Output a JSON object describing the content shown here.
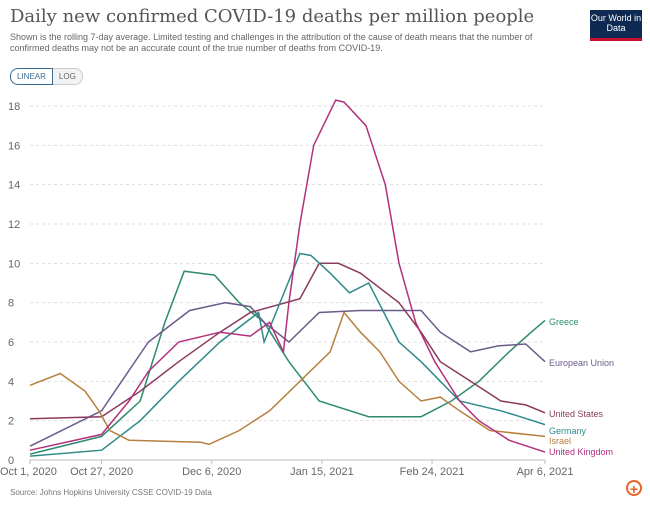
{
  "header": {
    "title": "Daily new confirmed COVID-19 deaths per million people",
    "subtitle": "Shown is the rolling 7-day average. Limited testing and challenges in the attribution of the cause of death means that the number of confirmed deaths may not be an accurate count of the true number of deaths from COVID-19.",
    "logo": "Our World in Data"
  },
  "controls": {
    "linear": "LINEAR",
    "log": "LOG"
  },
  "footer": {
    "source": "Source: Johns Hopkins University CSSE COVID-19 Data"
  },
  "chart_data": {
    "type": "line",
    "title": "Daily new confirmed COVID-19 deaths per million people",
    "x_unit": "days since Oct 1, 2020",
    "xlim": [
      0,
      187
    ],
    "ylim": [
      0,
      18
    ],
    "yticks": [
      0,
      2,
      4,
      6,
      8,
      10,
      12,
      14,
      16,
      18
    ],
    "xticks": [
      {
        "day": 0,
        "label": "Oct 1, 2020"
      },
      {
        "day": 26,
        "label": "Oct 27, 2020"
      },
      {
        "day": 66,
        "label": "Dec 6, 2020"
      },
      {
        "day": 106,
        "label": "Jan 15, 2021"
      },
      {
        "day": 146,
        "label": "Feb 24, 2021"
      },
      {
        "day": 187,
        "label": "Apr 6, 2021"
      }
    ],
    "grid": true,
    "legend": "right-end labels",
    "series": [
      {
        "name": "Greece",
        "color": "#2e8b6e",
        "points": [
          [
            0,
            0.3
          ],
          [
            26,
            1.2
          ],
          [
            40,
            3
          ],
          [
            49,
            7
          ],
          [
            56,
            9.6
          ],
          [
            67,
            9.4
          ],
          [
            76,
            8
          ],
          [
            85,
            7
          ],
          [
            94,
            5
          ],
          [
            105,
            3
          ],
          [
            123,
            2.2
          ],
          [
            142,
            2.2
          ],
          [
            153,
            3
          ],
          [
            163,
            4
          ],
          [
            174,
            5.5
          ],
          [
            182,
            6.5
          ],
          [
            187,
            7.1
          ]
        ]
      },
      {
        "name": "European Union",
        "color": "#6b5b8a",
        "points": [
          [
            0,
            0.7
          ],
          [
            26,
            2.5
          ],
          [
            43,
            6
          ],
          [
            58,
            7.6
          ],
          [
            71,
            8
          ],
          [
            80,
            7.8
          ],
          [
            85,
            7
          ],
          [
            94,
            6
          ],
          [
            105,
            7.5
          ],
          [
            120,
            7.6
          ],
          [
            142,
            7.6
          ],
          [
            149,
            6.5
          ],
          [
            160,
            5.5
          ],
          [
            170,
            5.8
          ],
          [
            180,
            5.9
          ],
          [
            187,
            5.0
          ]
        ]
      },
      {
        "name": "United States",
        "color": "#8a3a5e",
        "points": [
          [
            0,
            2.1
          ],
          [
            26,
            2.2
          ],
          [
            40,
            3.5
          ],
          [
            54,
            5
          ],
          [
            69,
            6.5
          ],
          [
            80,
            7.5
          ],
          [
            98,
            8.2
          ],
          [
            105,
            10
          ],
          [
            112,
            10
          ],
          [
            120,
            9.5
          ],
          [
            134,
            8
          ],
          [
            142,
            6.5
          ],
          [
            149,
            5
          ],
          [
            160,
            4
          ],
          [
            171,
            3
          ],
          [
            180,
            2.8
          ],
          [
            187,
            2.4
          ]
        ]
      },
      {
        "name": "Germany",
        "color": "#2f8a8a",
        "points": [
          [
            0,
            0.2
          ],
          [
            26,
            0.5
          ],
          [
            40,
            2
          ],
          [
            54,
            4
          ],
          [
            69,
            6
          ],
          [
            83,
            7.5
          ],
          [
            85,
            6
          ],
          [
            98,
            10.5
          ],
          [
            102,
            10.4
          ],
          [
            109,
            9.5
          ],
          [
            116,
            8.5
          ],
          [
            123,
            9
          ],
          [
            134,
            6
          ],
          [
            142,
            5
          ],
          [
            149,
            4
          ],
          [
            156,
            3
          ],
          [
            171,
            2.5
          ],
          [
            178,
            2.2
          ],
          [
            187,
            1.8
          ]
        ]
      },
      {
        "name": "Israel",
        "color": "#b8803e",
        "points": [
          [
            0,
            3.8
          ],
          [
            11,
            4.4
          ],
          [
            20,
            3.5
          ],
          [
            25,
            2.5
          ],
          [
            29,
            1.5
          ],
          [
            36,
            1
          ],
          [
            62,
            0.9
          ],
          [
            65,
            0.8
          ],
          [
            76,
            1.5
          ],
          [
            87,
            2.5
          ],
          [
            98,
            4
          ],
          [
            109,
            5.5
          ],
          [
            114,
            7.5
          ],
          [
            120,
            6.5
          ],
          [
            127,
            5.5
          ],
          [
            134,
            4
          ],
          [
            142,
            3
          ],
          [
            149,
            3.2
          ],
          [
            156,
            2.5
          ],
          [
            167,
            1.5
          ],
          [
            187,
            1.2
          ]
        ]
      },
      {
        "name": "United Kingdom",
        "color": "#b2307e",
        "points": [
          [
            0,
            0.5
          ],
          [
            26,
            1.3
          ],
          [
            36,
            3
          ],
          [
            43,
            4.5
          ],
          [
            54,
            6
          ],
          [
            69,
            6.5
          ],
          [
            80,
            6.3
          ],
          [
            87,
            7
          ],
          [
            92,
            5.5
          ],
          [
            94,
            8
          ],
          [
            98,
            12
          ],
          [
            103,
            16
          ],
          [
            111,
            18.3
          ],
          [
            114,
            18.2
          ],
          [
            122,
            17
          ],
          [
            129,
            14
          ],
          [
            134,
            10
          ],
          [
            140,
            7
          ],
          [
            147,
            5
          ],
          [
            156,
            3
          ],
          [
            163,
            2
          ],
          [
            174,
            1
          ],
          [
            187,
            0.4
          ]
        ]
      }
    ]
  }
}
